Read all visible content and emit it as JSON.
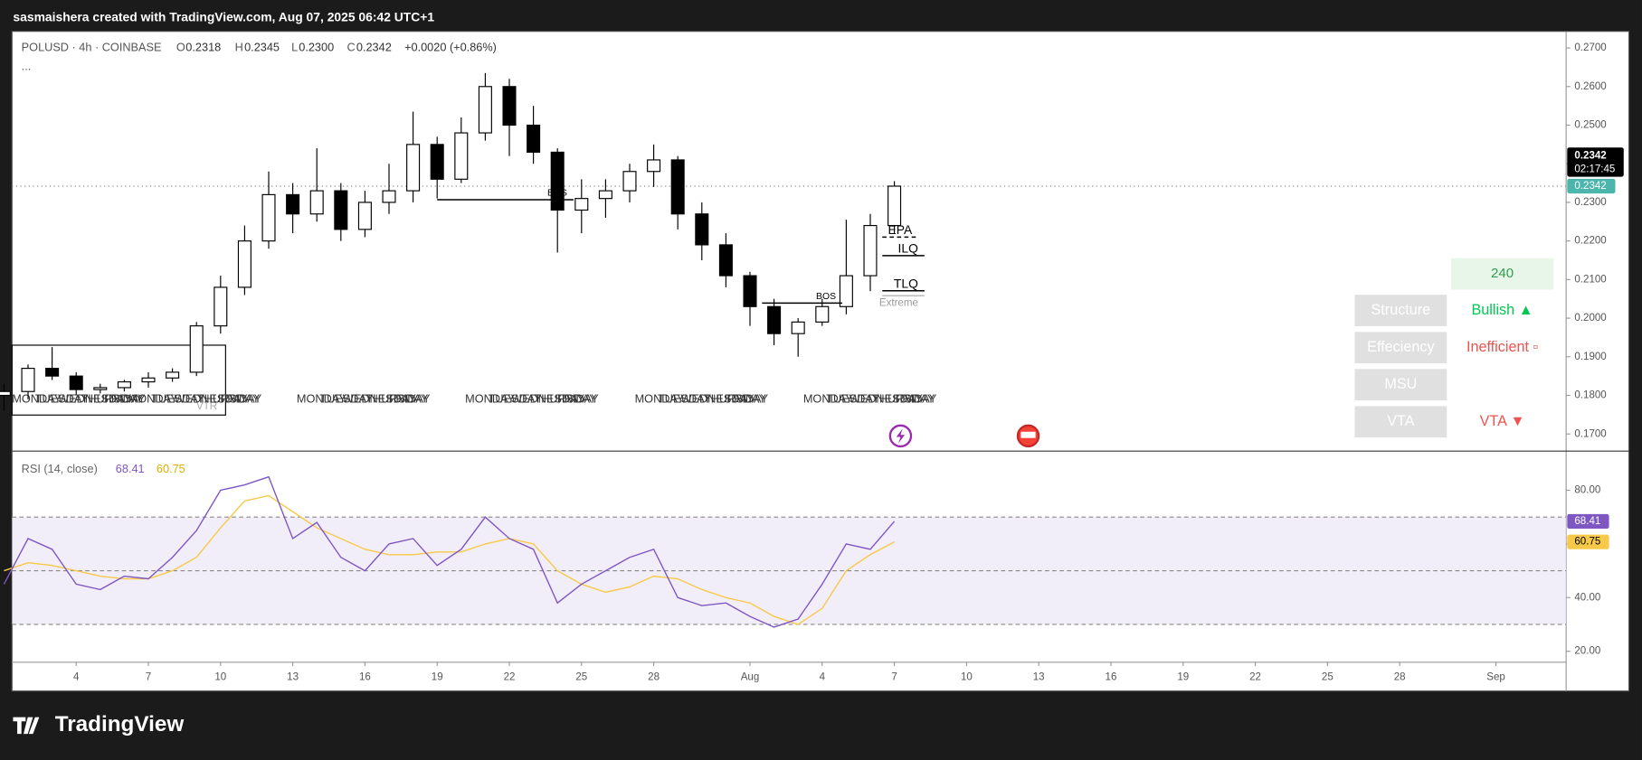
{
  "header": {
    "attribution": "sasmaishera created with TradingView.com, Aug 07, 2025 06:42 UTC+1",
    "symbol": "POLUSD · 4h · COINBASE",
    "o_label": "O",
    "o": "0.2318",
    "h_label": "H",
    "h": "0.2345",
    "l_label": "L",
    "l": "0.2300",
    "c_label": "C",
    "change": "+0.0020 (+0.86%)",
    "more": "..."
  },
  "chart_data": [
    {
      "type": "candlestick",
      "x": [
        "2025-07-01",
        "2025-07-02",
        "2025-07-03",
        "2025-07-04",
        "2025-07-05",
        "2025-07-06",
        "2025-07-07",
        "2025-07-08",
        "2025-07-09",
        "2025-07-10",
        "2025-07-11",
        "2025-07-12",
        "2025-07-13",
        "2025-07-14",
        "2025-07-15",
        "2025-07-16",
        "2025-07-17",
        "2025-07-18",
        "2025-07-19",
        "2025-07-20",
        "2025-07-21",
        "2025-07-22",
        "2025-07-23",
        "2025-07-24",
        "2025-07-25",
        "2025-07-26",
        "2025-07-27",
        "2025-07-28",
        "2025-07-29",
        "2025-07-30",
        "2025-07-31",
        "2025-08-01",
        "2025-08-02",
        "2025-08-03",
        "2025-08-04",
        "2025-08-05",
        "2025-08-06",
        "2025-08-07"
      ],
      "open": [
        0.18,
        0.181,
        0.187,
        0.185,
        0.1815,
        0.182,
        0.1835,
        0.1845,
        0.186,
        0.198,
        0.208,
        0.22,
        0.232,
        0.227,
        0.233,
        0.223,
        0.23,
        0.233,
        0.245,
        0.236,
        0.248,
        0.26,
        0.25,
        0.243,
        0.228,
        0.231,
        0.233,
        0.238,
        0.241,
        0.227,
        0.219,
        0.211,
        0.203,
        0.196,
        0.199,
        0.203,
        0.211,
        0.224
      ],
      "high": [
        0.183,
        0.188,
        0.1925,
        0.186,
        0.183,
        0.184,
        0.186,
        0.187,
        0.199,
        0.211,
        0.224,
        0.238,
        0.235,
        0.244,
        0.235,
        0.233,
        0.24,
        0.2535,
        0.247,
        0.252,
        0.2635,
        0.262,
        0.255,
        0.244,
        0.236,
        0.236,
        0.24,
        0.245,
        0.242,
        0.23,
        0.222,
        0.212,
        0.205,
        0.2,
        0.205,
        0.2255,
        0.227,
        0.2355
      ],
      "low": [
        0.176,
        0.179,
        0.184,
        0.18,
        0.1805,
        0.181,
        0.182,
        0.1835,
        0.185,
        0.196,
        0.206,
        0.218,
        0.222,
        0.225,
        0.22,
        0.221,
        0.227,
        0.23,
        0.231,
        0.235,
        0.246,
        0.242,
        0.24,
        0.217,
        0.222,
        0.226,
        0.23,
        0.234,
        0.223,
        0.215,
        0.208,
        0.198,
        0.193,
        0.19,
        0.198,
        0.201,
        0.207,
        0.222
      ],
      "close": [
        0.181,
        0.187,
        0.185,
        0.1815,
        0.182,
        0.1835,
        0.1845,
        0.186,
        0.198,
        0.208,
        0.22,
        0.232,
        0.227,
        0.233,
        0.223,
        0.23,
        0.233,
        0.245,
        0.236,
        0.248,
        0.26,
        0.25,
        0.243,
        0.228,
        0.231,
        0.233,
        0.238,
        0.241,
        0.227,
        0.219,
        0.211,
        0.203,
        0.196,
        0.199,
        0.203,
        0.211,
        0.224,
        0.2342
      ],
      "xlim": [
        "2025-07-01T08:00",
        "2025-09-03T22:00"
      ],
      "ylim": [
        0.1657,
        0.2743
      ],
      "yticks": [
        {
          "value": 0.27,
          "label": "0.2700"
        },
        {
          "value": 0.26,
          "label": "0.2600"
        },
        {
          "value": 0.25,
          "label": "0.2500"
        },
        {
          "value": 0.24,
          "label": "0.2400"
        },
        {
          "value": 0.23,
          "label": "0.2300"
        },
        {
          "value": 0.22,
          "label": "0.2200"
        },
        {
          "value": 0.21,
          "label": "0.2100"
        },
        {
          "value": 0.2,
          "label": "0.2000"
        },
        {
          "value": 0.19,
          "label": "0.1900"
        },
        {
          "value": 0.18,
          "label": "0.1800"
        },
        {
          "value": 0.17,
          "label": "0.1700"
        }
      ],
      "countdown": "02:17:45",
      "levels": [
        {
          "label": "BOS",
          "price": 0.2307,
          "start": "2025-07-19",
          "end": "2025-07-24T16:00"
        },
        {
          "label": "BOS",
          "price": 0.2039,
          "start": "2025-08-01T12:00",
          "end": "2025-08-04T20:00"
        },
        {
          "label": "EPA",
          "price": 0.221,
          "start": "2025-08-06T12:00",
          "end": "2025-08-08"
        },
        {
          "label": "ILQ",
          "price": 0.2162,
          "start": "2025-08-06T12:00",
          "end": "2025-08-08T06:00"
        },
        {
          "label": "TLQ",
          "price": 0.2071,
          "start": "2025-08-06T12:00",
          "end": "2025-08-08T06:00"
        },
        {
          "label": "Extreme",
          "price": 0.2058,
          "start": "2025-08-06T12:00",
          "end": "2025-08-08T06:00"
        }
      ],
      "zone": {
        "label": "VTR",
        "top": 0.193,
        "bottom": 0.1749,
        "start": "2025-07-01T08:00",
        "end": "2025-07-10T05:00"
      },
      "day_labels": [
        "MONDAY",
        "TUESDAY",
        "WEDNESDAY",
        "THURSDAY",
        "FRIDAY"
      ]
    },
    {
      "type": "line",
      "title": "RSI (14, close)",
      "x": [
        "2025-07-01",
        "2025-07-02",
        "2025-07-03",
        "2025-07-04",
        "2025-07-05",
        "2025-07-06",
        "2025-07-07",
        "2025-07-08",
        "2025-07-09",
        "2025-07-10",
        "2025-07-11",
        "2025-07-12",
        "2025-07-13",
        "2025-07-14",
        "2025-07-15",
        "2025-07-16",
        "2025-07-17",
        "2025-07-18",
        "2025-07-19",
        "2025-07-20",
        "2025-07-21",
        "2025-07-22",
        "2025-07-23",
        "2025-07-24",
        "2025-07-25",
        "2025-07-26",
        "2025-07-27",
        "2025-07-28",
        "2025-07-29",
        "2025-07-30",
        "2025-07-31",
        "2025-08-01",
        "2025-08-02",
        "2025-08-03",
        "2025-08-04",
        "2025-08-05",
        "2025-08-06",
        "2025-08-07"
      ],
      "series": [
        {
          "color": "#7e57c2",
          "values": [
            45,
            62,
            58,
            45,
            43,
            48,
            47,
            55,
            65,
            80,
            82,
            85,
            62,
            68,
            55,
            50,
            60,
            62,
            52,
            58,
            70,
            62,
            58,
            38,
            45,
            50,
            55,
            58,
            40,
            37,
            38,
            33,
            29,
            32,
            45,
            60,
            58,
            68.41
          ]
        },
        {
          "color": "#f7c948",
          "values": [
            50,
            53,
            52,
            50,
            48,
            47,
            47,
            50,
            55,
            66,
            76,
            78,
            72,
            66,
            62,
            58,
            56,
            56,
            57,
            57,
            60,
            62,
            60,
            50,
            45,
            42,
            44,
            48,
            47,
            43,
            40,
            38,
            33,
            30,
            36,
            50,
            56,
            60.75
          ]
        }
      ],
      "xlim": [
        "2025-07-01T08:00",
        "2025-09-03T22:00"
      ],
      "ylim": [
        16.1,
        94.4
      ],
      "yticks": [
        {
          "value": 80,
          "label": "80.00"
        },
        {
          "value": 60,
          "label": "60.00"
        },
        {
          "value": 40,
          "label": "40.00"
        },
        {
          "value": 20,
          "label": "20.00"
        }
      ],
      "levels": [
        70,
        50,
        30
      ],
      "xticks": [
        {
          "value": "2025-07-04",
          "label": "4"
        },
        {
          "value": "2025-07-07",
          "label": "7"
        },
        {
          "value": "2025-07-10",
          "label": "10"
        },
        {
          "value": "2025-07-13",
          "label": "13"
        },
        {
          "value": "2025-07-16",
          "label": "16"
        },
        {
          "value": "2025-07-19",
          "label": "19"
        },
        {
          "value": "2025-07-22",
          "label": "22"
        },
        {
          "value": "2025-07-25",
          "label": "25"
        },
        {
          "value": "2025-07-28",
          "label": "28"
        },
        {
          "value": "2025-08-01",
          "label": "Aug"
        },
        {
          "value": "2025-08-04",
          "label": "4"
        },
        {
          "value": "2025-08-07",
          "label": "7"
        },
        {
          "value": "2025-08-10",
          "label": "10"
        },
        {
          "value": "2025-08-13",
          "label": "13"
        },
        {
          "value": "2025-08-16",
          "label": "16"
        },
        {
          "value": "2025-08-19",
          "label": "19"
        },
        {
          "value": "2025-08-22",
          "label": "22"
        },
        {
          "value": "2025-08-25",
          "label": "25"
        },
        {
          "value": "2025-08-28",
          "label": "28"
        },
        {
          "value": "2025-09-01",
          "label": "Sep"
        }
      ]
    }
  ],
  "panel": {
    "timeframe": "240",
    "rows": [
      [
        "Structure",
        "Bullish ▲"
      ],
      [
        "Effeciency",
        "Inefficient ▫"
      ],
      [
        "MSU",
        ""
      ],
      [
        "VTA",
        "VTA ▼"
      ]
    ]
  },
  "footer": {
    "brand": "TradingView"
  }
}
